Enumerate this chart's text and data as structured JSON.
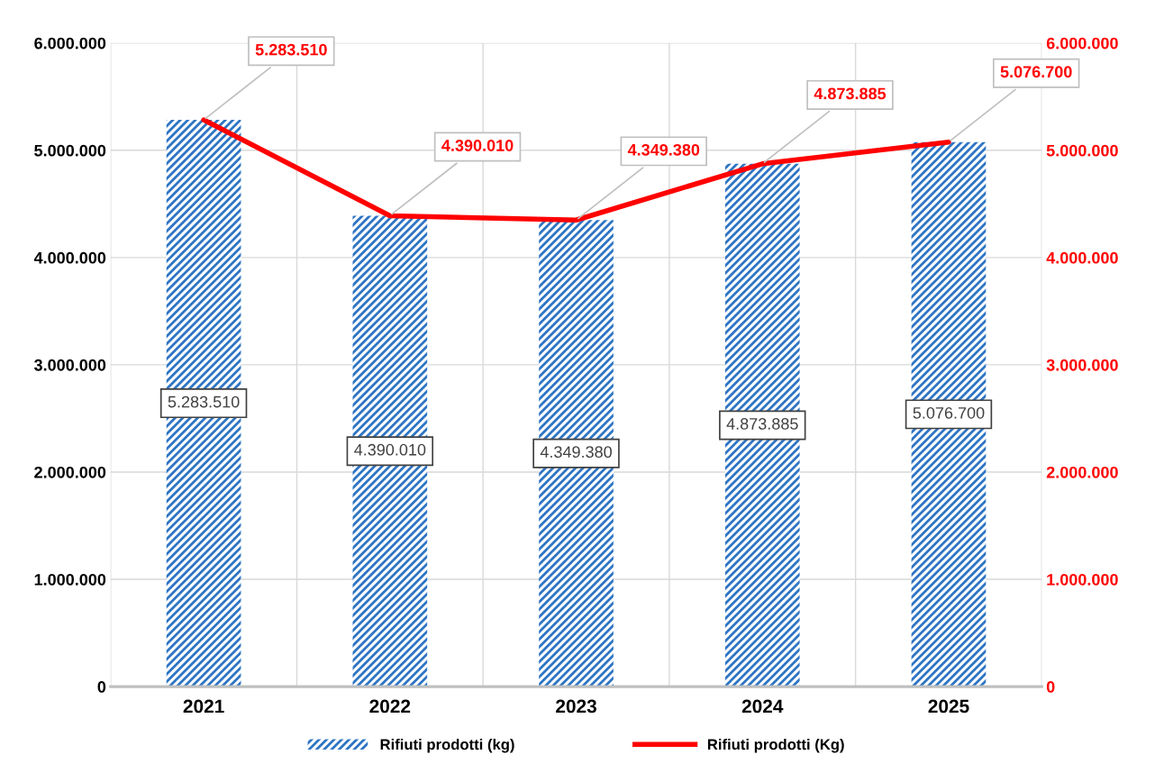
{
  "chart_data": {
    "type": "bar",
    "categories": [
      "2021",
      "2022",
      "2023",
      "2024",
      "2025"
    ],
    "series": [
      {
        "name": "Rifiuti prodotti (kg)",
        "color": "#2e75c4",
        "values": [
          5283510,
          4390010,
          4349380,
          4873885,
          5076700
        ],
        "value_labels": [
          "5.283.510",
          "4.390.010",
          "4.349.380",
          "4.873.885",
          "5.076.700"
        ]
      },
      {
        "name": "Rifiuti prodotti (Kg)",
        "type": "line",
        "axis": "y2",
        "color": "#ff0000",
        "values": [
          5283510,
          4390010,
          4349380,
          4873885,
          5076700
        ],
        "value_labels": [
          "5.283.510",
          "4.390.010",
          "4.349.380",
          "4.873.885",
          "5.076.700"
        ]
      }
    ],
    "ylim": [
      0,
      6000000
    ],
    "yticks": [
      {
        "value": 0,
        "label": "0"
      },
      {
        "value": 1000000,
        "label": "1.000.000"
      },
      {
        "value": 2000000,
        "label": "2.000.000"
      },
      {
        "value": 3000000,
        "label": "3.000.000"
      },
      {
        "value": 4000000,
        "label": "4.000.000"
      },
      {
        "value": 5000000,
        "label": "5.000.000"
      },
      {
        "value": 6000000,
        "label": "6.000.000"
      }
    ],
    "y2lim": [
      0,
      6000000
    ],
    "y2ticks": [
      {
        "value": 0,
        "label": "0"
      },
      {
        "value": 1000000,
        "label": "1.000.000"
      },
      {
        "value": 2000000,
        "label": "2.000.000"
      },
      {
        "value": 3000000,
        "label": "3.000.000"
      },
      {
        "value": 4000000,
        "label": "4.000.000"
      },
      {
        "value": 5000000,
        "label": "5.000.000"
      },
      {
        "value": 6000000,
        "label": "6.000.000"
      }
    ],
    "grid": true,
    "legend": "bottom"
  }
}
